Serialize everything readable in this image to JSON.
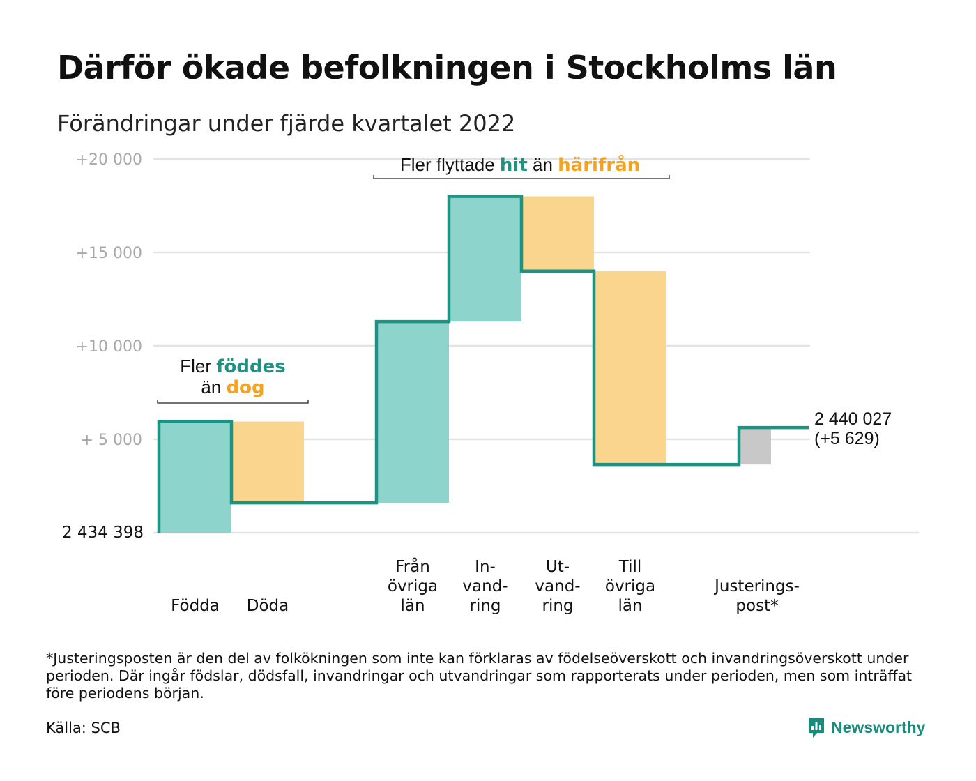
{
  "title": "Därför ökade befolkningen i Stockholms län",
  "subtitle": "Förändringar under fjärde kvartalet 2022",
  "colors": {
    "inflow": "#8dd5cc",
    "outflow": "#fad58d",
    "adjustment": "#c8c8c8",
    "line": "#1d9483",
    "highlight_green": "#1d9483",
    "highlight_orange": "#f5a21e",
    "grid": "#e3e3e3",
    "tick": "#a8a8a8"
  },
  "chart_data": {
    "type": "waterfall",
    "title": "Därför ökade befolkningen i Stockholms län",
    "subtitle": "Förändringar under fjärde kvartalet 2022",
    "start_value": 2434398,
    "start_label": "2 434 398",
    "end_label_lines": [
      "2 440 027",
      "(+5 629)"
    ],
    "y_ticks": [
      {
        "value": 20000,
        "label": "+20 000"
      },
      {
        "value": 15000,
        "label": "+15 000"
      },
      {
        "value": 10000,
        "label": "+10 000"
      },
      {
        "value": 5000,
        "label": "+ 5 000"
      },
      {
        "value": 0,
        "label": ""
      }
    ],
    "ylim": [
      0,
      20000
    ],
    "grid": true,
    "steps": [
      {
        "name": "Födda",
        "label_lines": [
          "Födda"
        ],
        "kind": "inflow",
        "from": 0,
        "to": 5950
      },
      {
        "name": "Döda",
        "label_lines": [
          "Döda"
        ],
        "kind": "outflow",
        "from": 5950,
        "to": 1600
      },
      {
        "name": "gap",
        "label_lines": [],
        "kind": "gap",
        "from": 1600,
        "to": 1600
      },
      {
        "name": "Från övriga län",
        "label_lines": [
          "Från",
          "övriga",
          "län"
        ],
        "kind": "inflow",
        "from": 1600,
        "to": 11300
      },
      {
        "name": "Invandring",
        "label_lines": [
          "In-",
          "vand-",
          "ring"
        ],
        "kind": "inflow",
        "from": 11300,
        "to": 18000
      },
      {
        "name": "Utvandring",
        "label_lines": [
          "Ut-",
          "vand-",
          "ring"
        ],
        "kind": "outflow",
        "from": 18000,
        "to": 14000
      },
      {
        "name": "Till övriga län",
        "label_lines": [
          "Till",
          "övriga",
          "län"
        ],
        "kind": "outflow",
        "from": 14000,
        "to": 3650
      },
      {
        "name": "gap",
        "label_lines": [],
        "kind": "gap",
        "from": 3650,
        "to": 3650
      },
      {
        "name": "Justeringspost*",
        "label_lines": [
          "Justerings-",
          "post*"
        ],
        "kind": "adjustment",
        "from": 3650,
        "to": 5629
      }
    ],
    "annotations": [
      {
        "lines": [
          [
            {
              "text": "Fler ",
              "color": "default",
              "bold": false
            },
            {
              "text": "föddes",
              "color": "green",
              "bold": true
            }
          ],
          [
            {
              "text": "än ",
              "color": "default",
              "bold": false
            },
            {
              "text": "dog",
              "color": "orange",
              "bold": true
            }
          ]
        ]
      },
      {
        "lines": [
          [
            {
              "text": "Fler flyttade ",
              "color": "default",
              "bold": false
            },
            {
              "text": "hit",
              "color": "green",
              "bold": true
            },
            {
              "text": " än ",
              "color": "default",
              "bold": false
            },
            {
              "text": "härifrån",
              "color": "orange",
              "bold": true
            }
          ]
        ]
      }
    ]
  },
  "footnote": "*Justeringsposten är den del av folkökningen som inte kan förklaras av födelseöverskott och invandringsöverskott under perioden. Där ingår födslar, dödsfall, invandringar och utvandringar som rapporterats under perioden, men som inträffat före periodens början.",
  "source": "Källa: SCB",
  "brand": {
    "name": "Newsworthy",
    "icon": "newsworthy-logo-icon"
  }
}
